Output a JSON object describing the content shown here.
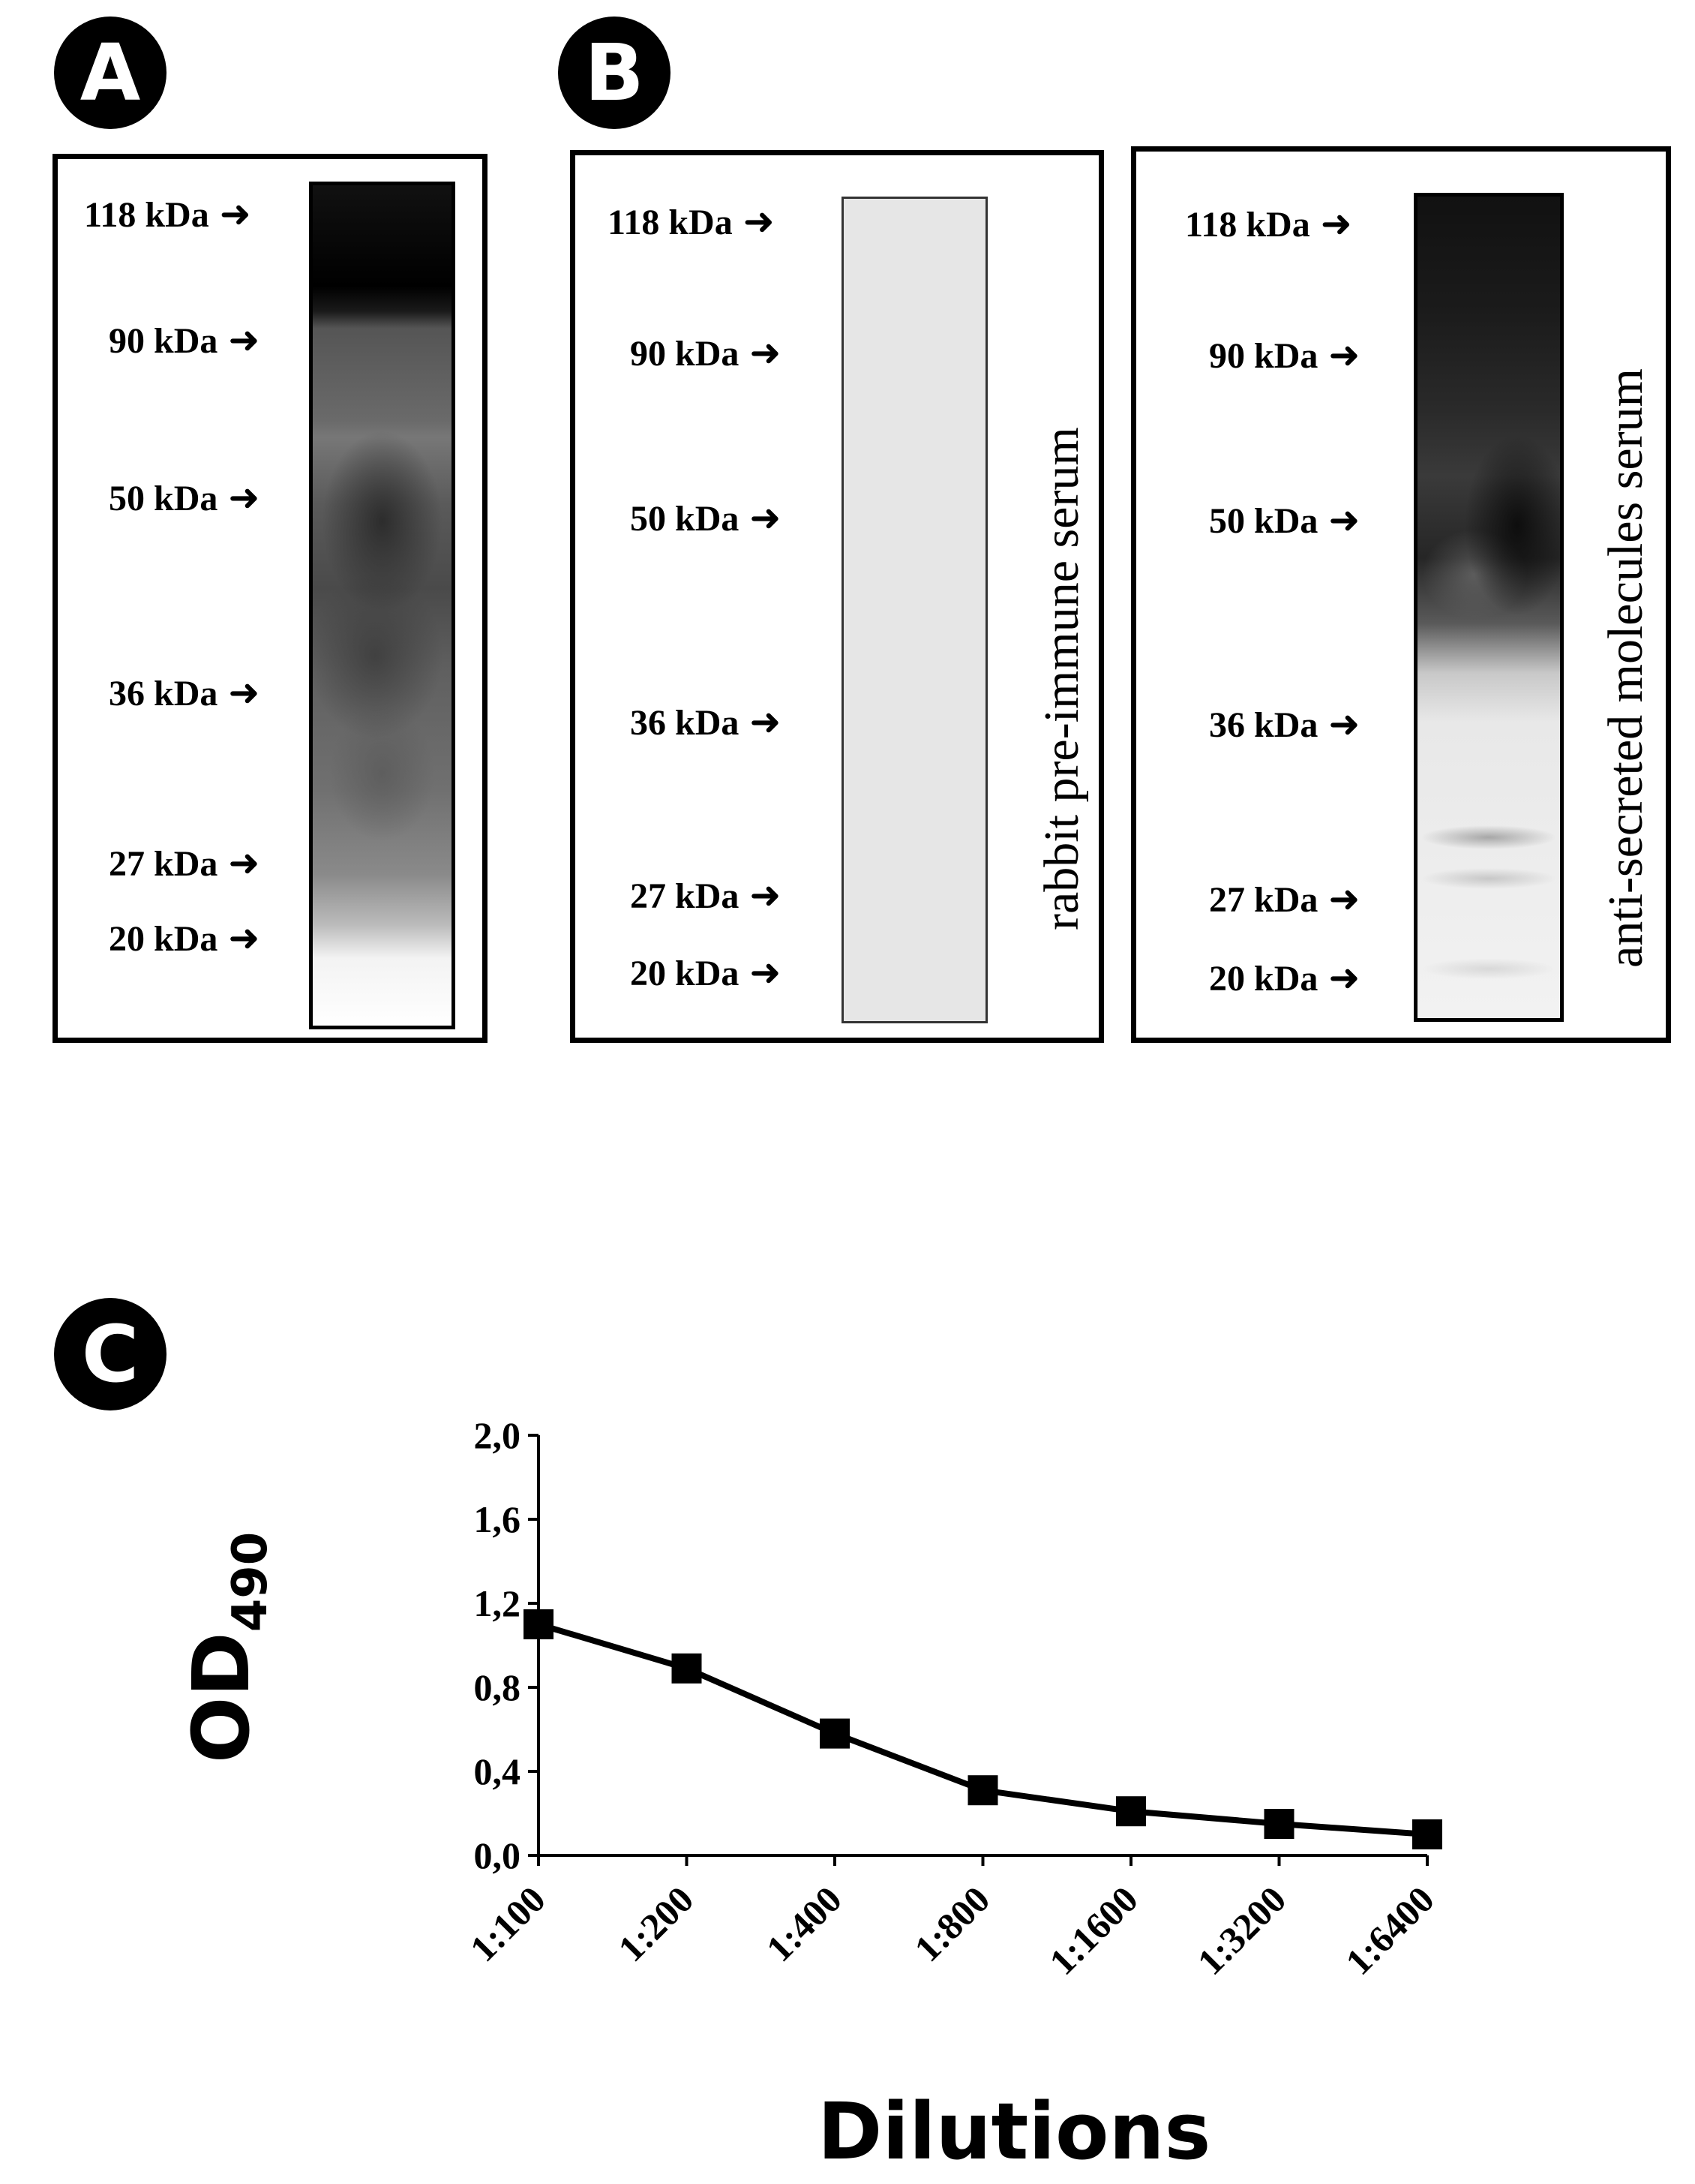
{
  "panels": {
    "a": {
      "badge": "A",
      "markers": [
        "118 kDa",
        "90 kDa",
        "50 kDa",
        "36 kDa",
        "27 kDa",
        "20 kDa"
      ]
    },
    "b": {
      "badge": "B",
      "left": {
        "markers": [
          "118 kDa",
          "90 kDa",
          "50 kDa",
          "36 kDa",
          "27 kDa",
          "20 kDa"
        ],
        "lane_label": "rabbit pre-immune  serum"
      },
      "right": {
        "markers": [
          "118 kDa",
          "90 kDa",
          "50 kDa",
          "36 kDa",
          "27 kDa",
          "20 kDa"
        ],
        "lane_label": "anti-secreted  molecules  serum"
      }
    },
    "c": {
      "badge": "C"
    }
  },
  "marker_arrow": "➜",
  "chart_data": {
    "type": "line",
    "title": "",
    "xlabel": "Dilutions",
    "ylabel_main": "OD",
    "ylabel_sub": "490",
    "categories": [
      "1:100",
      "1:200",
      "1:400",
      "1:800",
      "1:1600",
      "1:3200",
      "1:6400"
    ],
    "series": [
      {
        "name": "anti-secreted molecules serum",
        "values": [
          1.1,
          0.89,
          0.58,
          0.31,
          0.21,
          0.15,
          0.1
        ]
      }
    ],
    "ylim": [
      0,
      2.0
    ],
    "yticks": [
      "0,0",
      "0,4",
      "0,8",
      "1,2",
      "1,6",
      "2,0"
    ],
    "ytick_values": [
      0,
      0.4,
      0.8,
      1.2,
      1.6,
      2.0
    ],
    "grid": false,
    "marker": "square"
  }
}
